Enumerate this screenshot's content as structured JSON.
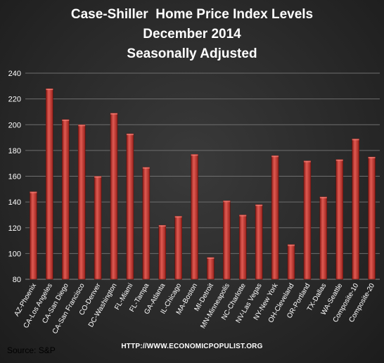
{
  "title_lines": [
    "Case-Shiller  Home Price Index Levels",
    "December 2014",
    "Seasonally Adjusted"
  ],
  "footer": {
    "source": "Source:  S&P",
    "url": "HTTP://WWW.ECONOMICPOPULIST.ORG"
  },
  "colors": {
    "bar": "#c0302a",
    "bar_highlight": "#e05a52",
    "gridline": "#6e6e6e",
    "text": "#ffffff"
  },
  "chart_data": {
    "type": "bar",
    "title": "Case-Shiller  Home Price Index Levels December 2014 Seasonally Adjusted",
    "categories": [
      "AZ-Phoenix",
      "CA-Los Angeles",
      "CA-San Diego",
      "CA-San Francisco",
      "CO-Denver",
      "DC-Washington",
      "FL-Miami",
      "FL-Tampa",
      "GA-Atlanta",
      "IL-Chicago",
      "MA-Boston",
      "MI-Detroit",
      "MN-Minneapolis",
      "NC-Charlotte",
      "NV-Las Vegas",
      "NY-New York",
      "OH-Cleveland",
      "OR-Portland",
      "TX-Dallas",
      "WA-Seattle",
      "Composite-10",
      "Composite-20"
    ],
    "values": [
      148,
      228,
      204,
      200,
      160,
      209,
      193,
      167,
      122,
      129,
      177,
      97,
      141,
      130,
      138,
      176,
      107,
      172,
      144,
      173,
      189,
      175
    ],
    "ylim": [
      80,
      240
    ],
    "yticks": [
      80,
      100,
      120,
      140,
      160,
      180,
      200,
      220,
      240
    ],
    "xlabel": "",
    "ylabel": "",
    "grid": true,
    "legend": "none"
  }
}
